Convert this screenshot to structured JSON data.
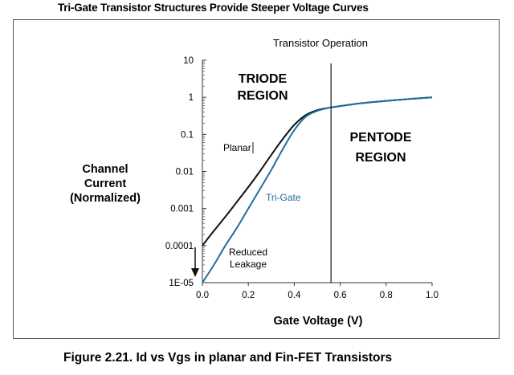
{
  "header": {
    "title": "Tri-Gate Transistor Structures Provide Steeper Voltage Curves"
  },
  "figure": {
    "caption": "Figure 2.21. Id vs Vgs in planar and Fin-FET Transistors"
  },
  "chart_data": {
    "type": "line",
    "title": "Transistor Operation",
    "xlabel": "Gate Voltage (V)",
    "ylabel": [
      "Channel",
      "Current",
      "(Normalized)"
    ],
    "xlim": [
      0,
      1.0
    ],
    "ylim": [
      1e-05,
      10
    ],
    "yscale": "log",
    "x_ticks": [
      0,
      0.2,
      0.4,
      0.6,
      0.8,
      1.0
    ],
    "x_tick_labels": [
      "0.0",
      "0.2",
      "0.4",
      "0.6",
      "0.8",
      "1.0"
    ],
    "y_ticks": [
      1e-05,
      0.0001,
      0.001,
      0.01,
      0.1,
      1,
      10
    ],
    "y_tick_labels": [
      "1E-05",
      "0.0001",
      "0.001",
      "0.01",
      "0.1",
      "1",
      "10"
    ],
    "grid": false,
    "series": [
      {
        "name": "Planar",
        "color": "#111111",
        "x": [
          0,
          0.05,
          0.1,
          0.15,
          0.2,
          0.25,
          0.3,
          0.35,
          0.4,
          0.45,
          0.5,
          0.55,
          0.6,
          0.7,
          0.8,
          0.9,
          1.0
        ],
        "y": [
          0.0001,
          0.00025,
          0.0006,
          0.0015,
          0.0038,
          0.01,
          0.028,
          0.075,
          0.18,
          0.33,
          0.45,
          0.52,
          0.58,
          0.7,
          0.8,
          0.9,
          1.0
        ]
      },
      {
        "name": "Tri-Gate",
        "color": "#1f6f9f",
        "x": [
          0,
          0.05,
          0.1,
          0.15,
          0.2,
          0.25,
          0.3,
          0.35,
          0.4,
          0.45,
          0.5,
          0.55,
          0.6,
          0.7,
          0.8,
          0.9,
          1.0
        ],
        "y": [
          1e-05,
          3e-05,
          0.0001,
          0.0003,
          0.001,
          0.0033,
          0.011,
          0.04,
          0.13,
          0.3,
          0.43,
          0.52,
          0.58,
          0.7,
          0.8,
          0.9,
          1.0
        ]
      }
    ],
    "divider_x": 0.56,
    "annotations": {
      "triode_line1": "TRIODE",
      "triode_line2": "REGION",
      "pentode_line1": "PENTODE",
      "pentode_line2": "REGION",
      "planar_label": "Planar",
      "trigate_label": "Tri-Gate",
      "leak_line1": "Reduced",
      "leak_line2": "Leakage"
    }
  }
}
